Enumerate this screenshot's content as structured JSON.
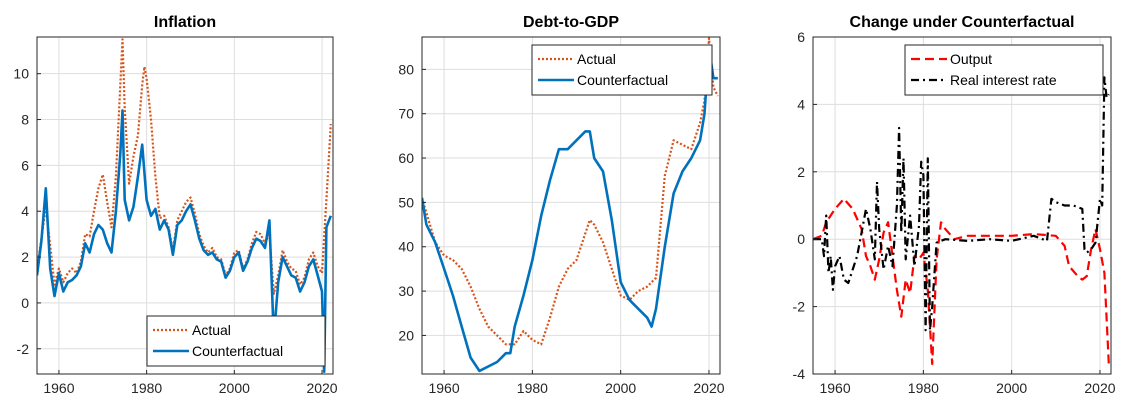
{
  "chart_data": [
    {
      "type": "line",
      "title": "Inflation",
      "xlim": [
        1955,
        2022.5
      ],
      "ylim": [
        -3.1,
        11.6
      ],
      "xticks": [
        1960,
        1980,
        2000,
        2020
      ],
      "xtick_labels": [
        "1960",
        "1980",
        "2000",
        "2020"
      ],
      "yticks": [
        -2,
        0,
        2,
        4,
        6,
        8,
        10
      ],
      "ytick_labels": [
        "-2",
        "0",
        "2",
        "4",
        "6",
        "8",
        "10"
      ],
      "grid": true,
      "legend": "bottom-right",
      "series": [
        {
          "name": "Actual",
          "color": "#d95319",
          "style": "dotted",
          "x": [
            1955,
            1956,
            1957,
            1958,
            1959,
            1960,
            1961,
            1962,
            1963,
            1964,
            1965,
            1966,
            1967,
            1968,
            1969,
            1970,
            1971,
            1972,
            1973,
            1974,
            1974.5,
            1975,
            1976,
            1977,
            1978,
            1979,
            1979.5,
            1980,
            1981,
            1982,
            1983,
            1984,
            1985,
            1986,
            1987,
            1988,
            1989,
            1990,
            1991,
            1992,
            1993,
            1994,
            1995,
            1996,
            1997,
            1998,
            1999,
            2000,
            2001,
            2002,
            2003,
            2004,
            2005,
            2006,
            2007,
            2008,
            2009,
            2010,
            2011,
            2012,
            2013,
            2014,
            2015,
            2016,
            2017,
            2018,
            2019,
            2020,
            2021,
            2022
          ],
          "y": [
            1.5,
            2.8,
            4.2,
            2.5,
            0.8,
            1.5,
            0.9,
            1.3,
            1.5,
            1.3,
            1.8,
            3.0,
            2.9,
            4.0,
            5.0,
            5.6,
            4.4,
            3.3,
            5.5,
            9.5,
            11.5,
            8.5,
            5.2,
            6.4,
            7.3,
            9.5,
            10.3,
            9.8,
            8.0,
            5.5,
            3.7,
            3.8,
            3.3,
            2.3,
            3.6,
            4.0,
            4.4,
            4.6,
            3.9,
            3.0,
            2.5,
            2.2,
            2.4,
            2.0,
            1.9,
            1.2,
            1.5,
            2.2,
            2.3,
            1.5,
            1.9,
            2.6,
            3.1,
            3.0,
            2.6,
            3.0,
            0.4,
            1.2,
            2.3,
            1.8,
            1.5,
            1.4,
            0.8,
            1.1,
            1.9,
            2.2,
            1.6,
            1.3,
            4.5,
            7.8
          ]
        },
        {
          "name": "Counterfactual",
          "color": "#0072bd",
          "style": "solid",
          "x": [
            1955,
            1956,
            1957,
            1958,
            1959,
            1960,
            1961,
            1962,
            1963,
            1964,
            1965,
            1966,
            1967,
            1968,
            1969,
            1970,
            1971,
            1972,
            1973,
            1974,
            1974.5,
            1975,
            1976,
            1977,
            1978,
            1979,
            1980,
            1981,
            1982,
            1983,
            1984,
            1985,
            1986,
            1987,
            1988,
            1989,
            1990,
            1991,
            1992,
            1993,
            1994,
            1995,
            1996,
            1997,
            1998,
            1999,
            2000,
            2001,
            2002,
            2003,
            2004,
            2005,
            2006,
            2007,
            2008,
            2009,
            2010,
            2011,
            2012,
            2013,
            2014,
            2015,
            2016,
            2017,
            2018,
            2019,
            2020,
            2020.5,
            2021,
            2022
          ],
          "y": [
            1.2,
            2.7,
            5.0,
            1.5,
            0.3,
            1.3,
            0.5,
            0.9,
            1.0,
            1.2,
            1.6,
            2.6,
            2.2,
            3.0,
            3.4,
            3.2,
            2.6,
            2.2,
            4.0,
            6.5,
            8.4,
            4.5,
            3.6,
            4.2,
            5.5,
            6.9,
            4.5,
            3.8,
            4.1,
            3.2,
            3.6,
            3.2,
            2.1,
            3.4,
            3.6,
            4.0,
            4.3,
            3.6,
            2.8,
            2.3,
            2.1,
            2.2,
            1.9,
            1.8,
            1.1,
            1.4,
            2.0,
            2.2,
            1.4,
            1.8,
            2.4,
            2.8,
            2.7,
            2.4,
            3.6,
            -1.5,
            0.9,
            2.0,
            1.6,
            1.2,
            1.1,
            0.5,
            0.9,
            1.6,
            1.9,
            1.2,
            0.5,
            -3.0,
            3.3,
            3.8
          ]
        }
      ]
    },
    {
      "type": "line",
      "title": "Debt-to-GDP",
      "xlim": [
        1955,
        2022.5
      ],
      "ylim": [
        11.3,
        87.3
      ],
      "xticks": [
        1960,
        1980,
        2000,
        2020
      ],
      "xtick_labels": [
        "1960",
        "1980",
        "2000",
        "2020"
      ],
      "yticks": [
        20,
        30,
        40,
        50,
        60,
        70,
        80
      ],
      "ytick_labels": [
        "20",
        "30",
        "40",
        "50",
        "60",
        "70",
        "80"
      ],
      "grid": true,
      "legend": "top-right",
      "series": [
        {
          "name": "Actual",
          "color": "#d95319",
          "style": "dotted",
          "x": [
            1955,
            1958,
            1960,
            1962,
            1964,
            1966,
            1968,
            1970,
            1972,
            1974,
            1976,
            1978,
            1980,
            1982,
            1984,
            1986,
            1988,
            1990,
            1992,
            1993,
            1994,
            1996,
            1998,
            2000,
            2002,
            2004,
            2006,
            2008,
            2010,
            2012,
            2014,
            2016,
            2018,
            2019,
            2020,
            2021,
            2022
          ],
          "y": [
            51,
            41,
            38,
            37,
            35,
            31,
            26,
            22,
            20,
            18,
            18,
            21,
            19,
            18,
            24,
            31,
            35,
            37,
            43,
            46,
            45,
            41,
            35,
            29,
            28,
            30,
            31,
            33,
            56,
            64,
            63,
            62,
            68,
            73,
            87,
            76,
            74
          ]
        },
        {
          "name": "Counterfactual",
          "color": "#0072bd",
          "style": "solid",
          "x": [
            1955,
            1956,
            1958,
            1960,
            1962,
            1964,
            1966,
            1968,
            1970,
            1972,
            1974,
            1975,
            1976,
            1978,
            1980,
            1982,
            1984,
            1986,
            1988,
            1990,
            1992,
            1993,
            1994,
            1996,
            1998,
            2000,
            2002,
            2004,
            2006,
            2007,
            2008,
            2010,
            2012,
            2014,
            2016,
            2018,
            2019,
            2020,
            2021,
            2022
          ],
          "y": [
            51,
            45,
            41,
            35,
            29,
            22,
            15,
            12,
            13,
            14,
            16,
            16,
            22,
            29,
            37,
            47,
            55,
            62,
            62,
            64,
            66,
            66,
            60,
            57,
            46,
            32,
            28,
            26,
            24,
            22,
            26,
            40,
            52,
            57,
            60,
            64,
            70,
            85,
            78,
            78
          ]
        }
      ]
    },
    {
      "type": "line",
      "title": "Change under Counterfactual",
      "xlim": [
        1955,
        2022.5
      ],
      "ylim": [
        -4,
        6
      ],
      "xticks": [
        1960,
        1980,
        2000,
        2020
      ],
      "xtick_labels": [
        "1960",
        "1980",
        "2000",
        "2020"
      ],
      "yticks": [
        -4,
        -2,
        0,
        2,
        4,
        6
      ],
      "ytick_labels": [
        "-4",
        "-2",
        "0",
        "2",
        "4",
        "6"
      ],
      "grid": true,
      "legend": "top-right",
      "series": [
        {
          "name": "Output",
          "color": "#ff0000",
          "style": "dashed",
          "x": [
            1955,
            1957,
            1958,
            1960,
            1962,
            1964,
            1966,
            1967,
            1968,
            1969,
            1970,
            1971,
            1972,
            1974,
            1975,
            1976,
            1977,
            1978,
            1979,
            1980,
            1981,
            1982,
            1983,
            1984,
            1985,
            1987,
            1990,
            1995,
            2000,
            2005,
            2010,
            2012,
            2013,
            2015,
            2016,
            2017,
            2018,
            2019,
            2020,
            2021,
            2022
          ],
          "y": [
            0,
            0.1,
            0.5,
            0.9,
            1.2,
            0.9,
            0.3,
            -0.5,
            -0.8,
            -1.2,
            -0.6,
            0.2,
            0.5,
            -1.5,
            -2.3,
            -1.2,
            -1.6,
            -0.5,
            -0.6,
            -0.4,
            -1.5,
            -3.7,
            -0.6,
            0.5,
            0.3,
            0.0,
            0.1,
            0.1,
            0.1,
            0.15,
            0.1,
            -0.2,
            -0.8,
            -1.1,
            -1.2,
            -1.1,
            -0.3,
            0.3,
            -0.3,
            -1.0,
            -3.7
          ]
        },
        {
          "name": "Real interest rate",
          "color": "#000000",
          "style": "dashdot",
          "x": [
            1955,
            1957,
            1957.5,
            1958,
            1958.5,
            1959,
            1959.5,
            1960,
            1961,
            1962,
            1963,
            1964,
            1965,
            1966,
            1967,
            1968,
            1969,
            1969.5,
            1970,
            1971,
            1972,
            1973,
            1974,
            1974.5,
            1975,
            1975.5,
            1976,
            1977,
            1978,
            1979,
            1979.5,
            1980,
            1980.5,
            1981,
            1981.5,
            1982,
            1983,
            1984,
            1985,
            1990,
            1995,
            2000,
            2005,
            2008,
            2009,
            2010,
            2012,
            2014,
            2016,
            2016.5,
            2017,
            2018,
            2019,
            2020,
            2020.5,
            2021,
            2021.5,
            2022
          ],
          "y": [
            0,
            0,
            -0.5,
            0.7,
            -1.0,
            -0.5,
            -1.5,
            -0.8,
            -0.5,
            -1.2,
            -1.3,
            -0.9,
            -0.5,
            0.2,
            0.9,
            0.3,
            -0.6,
            1.7,
            0.3,
            -0.9,
            -0.2,
            -0.8,
            1.0,
            3.3,
            0.2,
            2.4,
            -0.6,
            0.7,
            -0.8,
            0.4,
            2.3,
            1.9,
            -2.7,
            2.4,
            -2.7,
            -2.0,
            -0.1,
            -0.05,
            0,
            -0.05,
            0,
            -0.05,
            0.1,
            -0.05,
            1.2,
            1.1,
            1.0,
            1.0,
            0.9,
            -0.3,
            -0.4,
            -0.3,
            -0.1,
            1.2,
            1.0,
            4.8,
            4.2,
            4.3
          ]
        }
      ]
    }
  ]
}
